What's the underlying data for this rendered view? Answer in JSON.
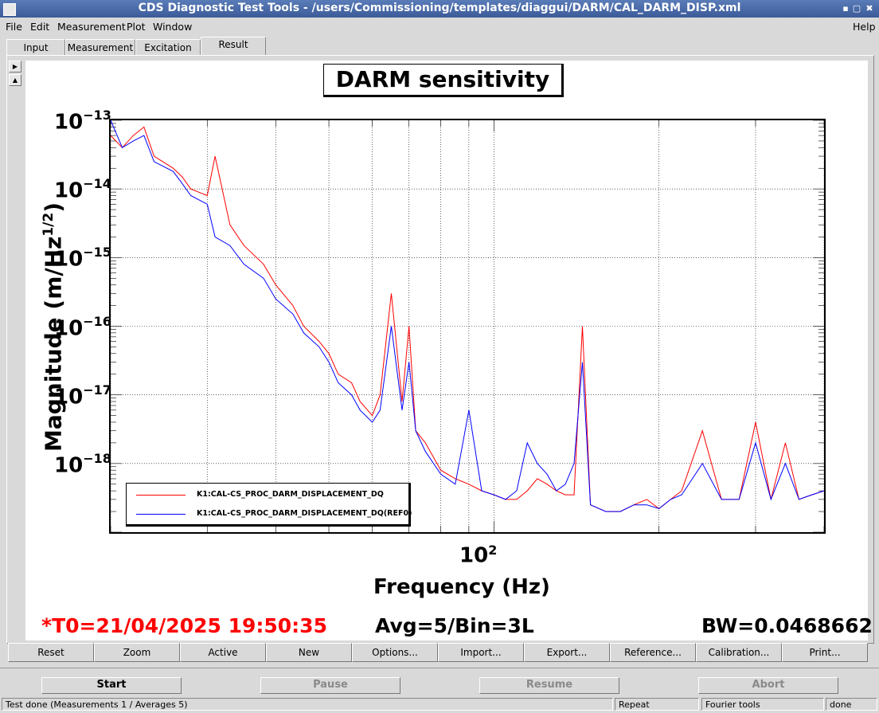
{
  "window": {
    "title": "CDS Diagnostic Test Tools - /users/Commissioning/templates/diaggui/DARM/CAL_DARM_DISP.xml",
    "minimize": "▪",
    "maximize": "▢",
    "close": "✖"
  },
  "menu": {
    "file": "File",
    "edit": "Edit",
    "measurement": "Measurement",
    "plot": "Plot",
    "window": "Window",
    "help": "Help"
  },
  "tabs": [
    "Input",
    "Measurement",
    "Excitation",
    "Result"
  ],
  "active_tab": "Result",
  "plot": {
    "title": "DARM sensitivity",
    "ylabel_main": "Magnitude (m/Hz",
    "ylabel_sup": "1/2",
    "ylabel_end": ")",
    "xlabel": "Frequency (Hz)",
    "yticks": [
      {
        "base": "10",
        "exp": "−13"
      },
      {
        "base": "10",
        "exp": "−14"
      },
      {
        "base": "10",
        "exp": "−15"
      },
      {
        "base": "10",
        "exp": "−16"
      },
      {
        "base": "10",
        "exp": "−17"
      },
      {
        "base": "10",
        "exp": "−18"
      }
    ],
    "xtick": {
      "base": "10",
      "exp": "2"
    },
    "legend": [
      {
        "name": "K1:CAL-CS_PROC_DARM_DISPLACEMENT_DQ",
        "color": "#ff0000"
      },
      {
        "name": "K1:CAL-CS_PROC_DARM_DISPLACEMENT_DQ(REF0)",
        "color": "#0000ff"
      }
    ],
    "t0": "*T0=21/04/2025 19:50:35",
    "avg": "Avg=5/Bin=3L",
    "bw": "BW=0.0468662"
  },
  "chart_data": {
    "type": "line",
    "title": "DARM sensitivity",
    "xlabel": "Frequency (Hz)",
    "ylabel": "Magnitude (m/Hz^1/2)",
    "x_scale": "log",
    "y_scale": "log",
    "xlim": [
      20,
      400
    ],
    "ylim": [
      1e-19,
      1e-13
    ],
    "grid": true,
    "legend_position": "bottom-left",
    "series": [
      {
        "name": "K1:CAL-CS_PROC_DARM_DISPLACEMENT_DQ",
        "color": "#ff0000",
        "x": [
          20,
          21,
          22,
          23,
          24,
          26,
          27,
          28,
          30,
          31,
          33,
          35,
          38,
          40,
          43,
          45,
          48,
          50,
          52,
          55,
          57,
          60,
          62,
          65,
          68,
          70,
          72,
          75,
          80,
          85,
          90,
          95,
          100,
          105,
          110,
          115,
          120,
          125,
          130,
          135,
          140,
          145,
          150,
          160,
          170,
          180,
          190,
          200,
          210,
          220,
          240,
          260,
          280,
          300,
          320,
          340,
          360,
          380,
          400
        ],
        "y": [
          6e-14,
          4e-14,
          6e-14,
          8e-14,
          3e-14,
          2e-14,
          1.5e-14,
          1e-14,
          8e-15,
          3e-14,
          3e-15,
          1.5e-15,
          8e-16,
          4e-16,
          2e-16,
          1e-16,
          6e-17,
          4e-17,
          2e-17,
          1.5e-17,
          8e-18,
          5e-18,
          1e-17,
          3e-16,
          8e-18,
          1e-16,
          3e-18,
          2e-18,
          8e-19,
          6e-19,
          5e-19,
          4e-19,
          3.5e-19,
          3e-19,
          3e-19,
          4e-19,
          6e-19,
          5e-19,
          4e-19,
          3.5e-19,
          3.5e-19,
          1e-16,
          2.5e-19,
          2e-19,
          2e-19,
          2.5e-19,
          3e-19,
          2.2e-19,
          3e-19,
          4e-19,
          3e-18,
          3e-19,
          3e-19,
          4e-18,
          3e-19,
          2e-18,
          3e-19,
          3.5e-19,
          4e-19
        ]
      },
      {
        "name": "K1:CAL-CS_PROC_DARM_DISPLACEMENT_DQ(REF0)",
        "color": "#0000ff",
        "x": [
          20,
          21,
          22,
          23,
          24,
          26,
          27,
          28,
          30,
          31,
          33,
          35,
          38,
          40,
          43,
          45,
          48,
          50,
          52,
          55,
          57,
          60,
          62,
          65,
          68,
          70,
          72,
          75,
          80,
          85,
          90,
          95,
          100,
          105,
          110,
          115,
          120,
          125,
          130,
          135,
          140,
          145,
          150,
          160,
          170,
          180,
          190,
          200,
          210,
          220,
          240,
          260,
          280,
          300,
          320,
          340,
          360,
          380,
          400
        ],
        "y": [
          1e-13,
          4e-14,
          5e-14,
          6e-14,
          2.5e-14,
          1.8e-14,
          1.2e-14,
          8e-15,
          6e-15,
          2e-15,
          1.5e-15,
          8e-16,
          5e-16,
          2.5e-16,
          1.5e-16,
          8e-17,
          5e-17,
          3e-17,
          1.5e-17,
          1e-17,
          6e-18,
          4e-18,
          6e-18,
          1e-16,
          6e-18,
          3e-17,
          3e-18,
          1.5e-18,
          7e-19,
          5e-19,
          6e-18,
          4e-19,
          3.5e-19,
          3e-19,
          4e-19,
          2e-18,
          1e-18,
          7e-19,
          4e-19,
          5e-19,
          1e-18,
          3e-17,
          2.5e-19,
          2e-19,
          2e-19,
          2.5e-19,
          2.5e-19,
          2.2e-19,
          3e-19,
          3.5e-19,
          1e-18,
          3e-19,
          3e-19,
          2e-18,
          3e-19,
          1e-18,
          3e-19,
          3.5e-19,
          4e-19
        ]
      }
    ]
  },
  "buttons": {
    "reset": "Reset",
    "zoom": "Zoom",
    "active": "Active",
    "new": "New",
    "options": "Options...",
    "import": "Import...",
    "export": "Export...",
    "reference": "Reference...",
    "calibration": "Calibration...",
    "print": "Print..."
  },
  "run": {
    "start": "Start",
    "pause": "Pause",
    "resume": "Resume",
    "abort": "Abort"
  },
  "status": {
    "message": "Test done (Measurements 1 / Averages 5)",
    "mode": "Repeat",
    "tool": "Fourier tools",
    "state": "done"
  },
  "colors": {
    "info_red": "#ff0000",
    "series_red": "#ff0000",
    "series_blue": "#0000ff"
  }
}
